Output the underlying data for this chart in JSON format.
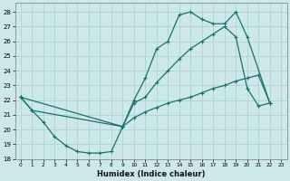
{
  "xlabel": "Humidex (Indice chaleur)",
  "bg_color": "#cce8e8",
  "line_color": "#1a7070",
  "grid_color": "#aacece",
  "xlim": [
    -0.5,
    23.5
  ],
  "ylim": [
    18,
    28.6
  ],
  "yticks": [
    18,
    19,
    20,
    21,
    22,
    23,
    24,
    25,
    26,
    27,
    28
  ],
  "xticks": [
    0,
    1,
    2,
    3,
    4,
    5,
    6,
    7,
    8,
    9,
    10,
    11,
    12,
    13,
    14,
    15,
    16,
    17,
    18,
    19,
    20,
    21,
    22,
    23
  ],
  "line1_x": [
    0,
    1,
    2,
    3,
    4,
    5,
    6,
    7,
    8,
    9,
    10,
    11,
    12,
    13,
    14,
    15,
    16,
    17,
    18,
    19,
    20,
    21,
    22
  ],
  "line1_y": [
    22.2,
    21.3,
    20.5,
    19.5,
    18.9,
    18.5,
    18.4,
    18.4,
    18.5,
    20.2,
    21.8,
    22.2,
    23.2,
    24.0,
    24.8,
    25.5,
    26.0,
    26.5,
    27.0,
    26.3,
    22.8,
    21.6,
    21.8
  ],
  "line2_x": [
    0,
    9,
    10,
    11,
    12,
    13,
    14,
    15,
    16,
    17,
    18,
    19,
    20,
    22
  ],
  "line2_y": [
    22.2,
    20.2,
    22.0,
    23.5,
    25.5,
    26.0,
    27.8,
    28.0,
    27.5,
    27.2,
    27.2,
    28.0,
    26.3,
    21.8
  ],
  "line3_x": [
    0,
    1,
    9,
    10,
    11,
    12,
    13,
    14,
    15,
    16,
    17,
    18,
    19,
    20,
    21,
    22
  ],
  "line3_y": [
    22.2,
    21.3,
    20.2,
    20.8,
    21.2,
    21.5,
    21.8,
    22.0,
    22.2,
    22.5,
    22.8,
    23.0,
    23.3,
    23.5,
    23.7,
    21.8
  ]
}
